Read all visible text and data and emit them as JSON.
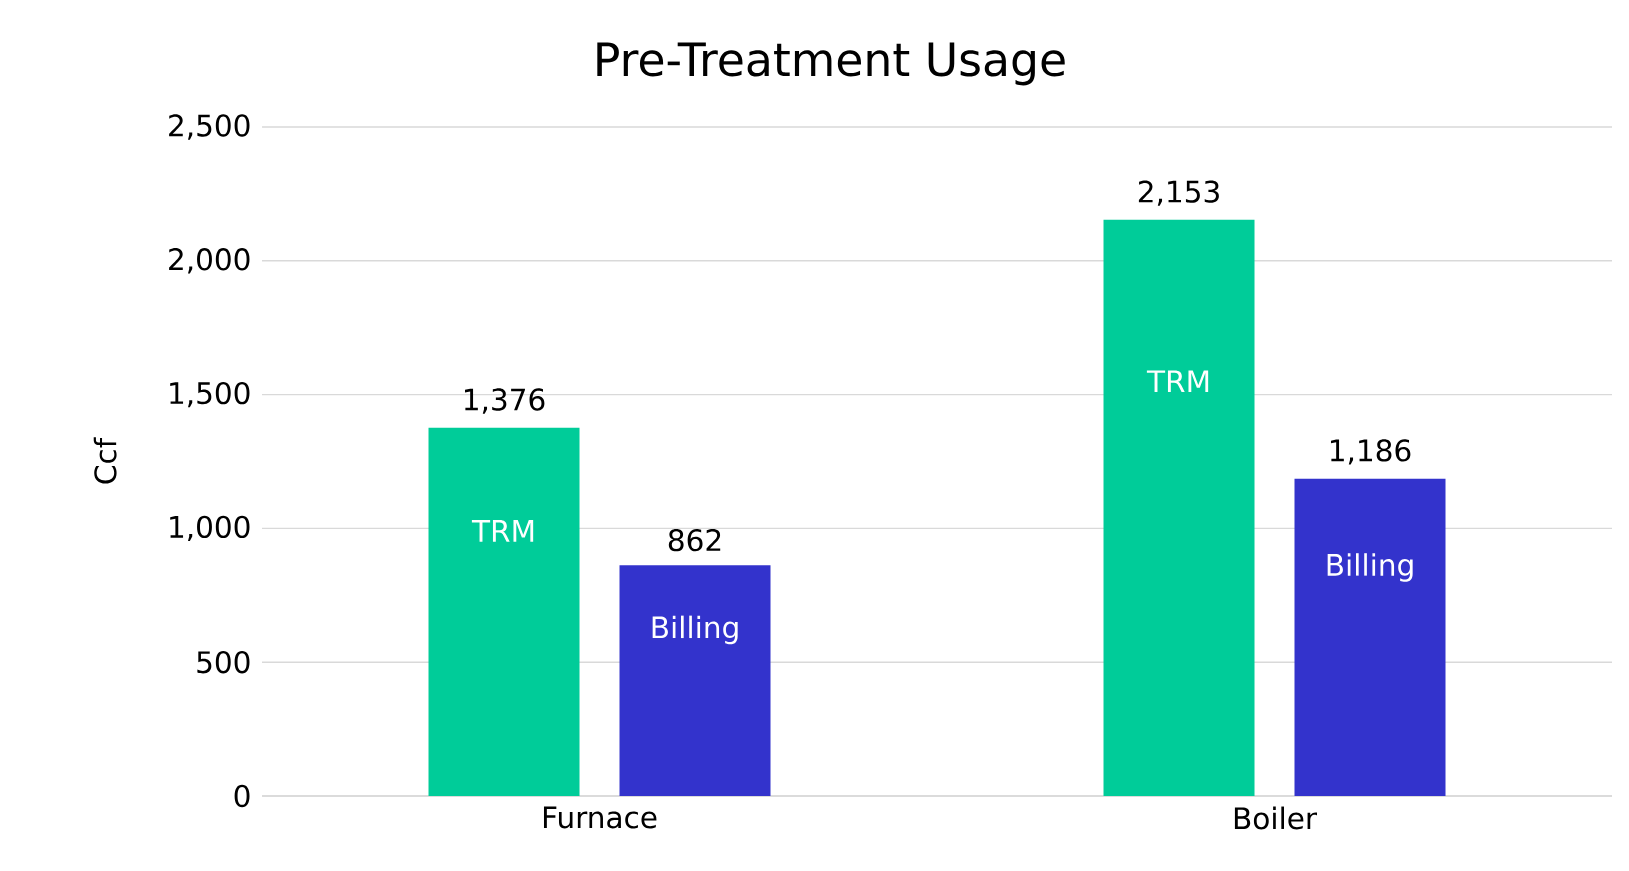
{
  "chart_data": {
    "type": "bar",
    "title": "Pre-Treatment Usage",
    "ylabel": "Ccf",
    "categories": [
      "Furnace",
      "Boiler"
    ],
    "series": [
      {
        "name": "TRM",
        "color": "#00cc99",
        "values": [
          1376,
          2153
        ],
        "value_labels": [
          "1,376",
          "2,153"
        ]
      },
      {
        "name": "Billing",
        "color": "#3333cc",
        "values": [
          862,
          1186
        ],
        "value_labels": [
          "862",
          "1,186"
        ]
      }
    ],
    "ylim": [
      0,
      2500
    ],
    "yticks": [
      0,
      {
        "value": 500,
        "label": "500"
      },
      {
        "value": 1000,
        "label": "1,000"
      },
      {
        "value": 1500,
        "label": "1,500"
      },
      {
        "value": 2000,
        "label": "2,000"
      },
      {
        "value": 2500,
        "label": "2,500"
      }
    ],
    "grid": "y"
  }
}
